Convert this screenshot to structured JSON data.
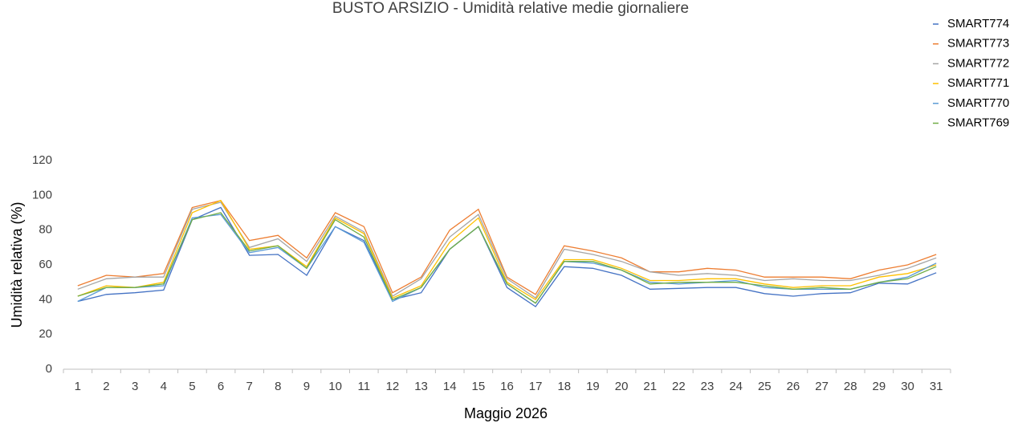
{
  "chart_data": {
    "type": "line",
    "title": "BUSTO ARSIZIO - Umidità relative medie giornaliere",
    "x_label": "Maggio 2026",
    "y_label": "Umidità relativa (%)",
    "categories": [
      "1",
      "2",
      "3",
      "4",
      "5",
      "6",
      "7",
      "8",
      "9",
      "10",
      "11",
      "12",
      "13",
      "14",
      "15",
      "16",
      "17",
      "18",
      "19",
      "20",
      "21",
      "22",
      "23",
      "24",
      "25",
      "26",
      "27",
      "28",
      "29",
      "30",
      "31"
    ],
    "ylim": [
      0,
      120
    ],
    "yticks": [
      0,
      20,
      40,
      60,
      80,
      100,
      120
    ],
    "grid": false,
    "legend": "top-right",
    "series": [
      {
        "name": "SMART774",
        "color": "#4472c4",
        "values": [
          39,
          43,
          44,
          45.5,
          86,
          93,
          65.5,
          66,
          54,
          82,
          74,
          40,
          44,
          69,
          82,
          47,
          36,
          59,
          58,
          54,
          46,
          46.5,
          47,
          47,
          43.5,
          42,
          43.5,
          44,
          49.5,
          49,
          55.5
        ]
      },
      {
        "name": "SMART773",
        "color": "#ed7d31",
        "values": [
          48,
          54,
          53,
          55,
          93,
          97,
          74,
          77,
          64,
          90,
          82,
          44,
          53,
          80,
          92,
          53,
          43,
          71,
          68,
          64,
          56,
          56,
          58,
          57,
          53,
          53,
          53,
          52,
          57,
          60,
          66
        ]
      },
      {
        "name": "SMART772",
        "color": "#a5a5a5",
        "values": [
          46,
          52,
          53,
          53,
          92,
          96,
          70,
          75,
          62,
          88,
          79,
          42,
          52,
          76,
          89,
          52,
          41,
          69,
          66,
          62,
          56,
          54,
          55,
          54,
          51,
          52,
          51,
          51,
          54,
          58,
          64
        ]
      },
      {
        "name": "SMART771",
        "color": "#ffc000",
        "values": [
          42,
          48,
          47,
          50,
          90,
          97,
          69,
          71,
          59,
          87,
          78,
          41,
          48,
          73,
          87,
          50,
          40,
          63,
          63,
          58,
          51,
          51,
          52,
          52,
          49,
          47,
          48,
          48,
          53,
          55,
          60
        ]
      },
      {
        "name": "SMART770",
        "color": "#5b9bd5",
        "values": [
          39,
          47,
          47,
          48,
          87,
          89,
          67,
          70,
          58,
          82,
          73,
          39,
          47,
          69,
          82,
          49,
          38,
          62,
          61,
          57,
          50,
          49,
          50,
          51,
          47,
          46,
          46,
          46,
          50,
          53,
          61
        ]
      },
      {
        "name": "SMART769",
        "color": "#70ad47",
        "values": [
          42,
          47,
          47,
          49,
          86,
          90,
          68,
          71,
          58,
          86,
          76,
          40,
          47,
          69,
          82,
          49,
          38,
          62,
          62,
          57,
          49,
          50,
          50,
          50,
          48,
          46,
          47,
          46,
          50,
          52,
          59
        ]
      }
    ]
  }
}
